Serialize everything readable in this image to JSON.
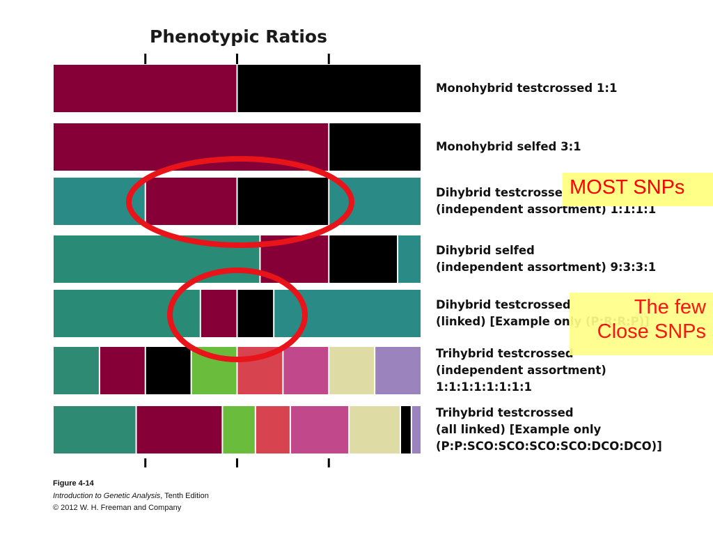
{
  "chart_data": {
    "type": "bar",
    "title": "Phenotypic Ratios",
    "rows": [
      {
        "label_lines": [
          "Monohybrid testcrossed 1:1"
        ],
        "segments": [
          {
            "value": 1,
            "color": "#860037"
          },
          {
            "value": 1,
            "color": "#000000"
          }
        ]
      },
      {
        "label_lines": [
          "Monohybrid selfed 3:1"
        ],
        "segments": [
          {
            "value": 3,
            "color": "#860037"
          },
          {
            "value": 1,
            "color": "#000000"
          }
        ]
      },
      {
        "label_lines": [
          "Dihybrid testcrossed",
          "(independent assortment) 1:1:1:1"
        ],
        "segments": [
          {
            "value": 1,
            "color": "#298a86"
          },
          {
            "value": 1,
            "color": "#860037"
          },
          {
            "value": 1,
            "color": "#000000"
          },
          {
            "value": 1,
            "color": "#298a86"
          }
        ]
      },
      {
        "label_lines": [
          "Dihybrid selfed",
          "(independent assortment) 9:3:3:1"
        ],
        "segments": [
          {
            "value": 9,
            "color": "#298a76"
          },
          {
            "value": 3,
            "color": "#860037"
          },
          {
            "value": 3,
            "color": "#000000"
          },
          {
            "value": 1,
            "color": "#298a86"
          }
        ]
      },
      {
        "label_lines": [
          "Dihybrid testcrossed",
          "(linked) [Example only (P:R:R:P)]"
        ],
        "segments": [
          {
            "value": 40,
            "color": "#298a76"
          },
          {
            "value": 10,
            "color": "#860037"
          },
          {
            "value": 10,
            "color": "#000000"
          },
          {
            "value": 40,
            "color": "#298a86"
          }
        ]
      },
      {
        "label_lines": [
          "Trihybrid testcrossed",
          "(independent assortment)",
          "1:1:1:1:1:1:1:1"
        ],
        "segments": [
          {
            "value": 1,
            "color": "#2e8a72"
          },
          {
            "value": 1,
            "color": "#860037"
          },
          {
            "value": 1,
            "color": "#000000"
          },
          {
            "value": 1,
            "color": "#6abc3c"
          },
          {
            "value": 1,
            "color": "#d7434f"
          },
          {
            "value": 1,
            "color": "#c2488c"
          },
          {
            "value": 1,
            "color": "#dedba4"
          },
          {
            "value": 1,
            "color": "#9b84bd"
          }
        ]
      },
      {
        "label_lines": [
          "Trihybrid testcrossed",
          "(all linked) [Example only",
          "(P:P:SCO:SCO:SCO:SCO:DCO:DCO)]"
        ],
        "segments": [
          {
            "value": 22.5,
            "color": "#2e8a72"
          },
          {
            "value": 23.5,
            "color": "#860037"
          },
          {
            "value": 9,
            "color": "#6abc3c"
          },
          {
            "value": 9.5,
            "color": "#d7434f"
          },
          {
            "value": 16,
            "color": "#c2488c"
          },
          {
            "value": 14,
            "color": "#dedba4"
          },
          {
            "value": 3,
            "color": "#000000"
          },
          {
            "value": 2.5,
            "color": "#9b84bd"
          }
        ]
      }
    ],
    "tick_fractions": [
      0.25,
      0.5,
      0.75
    ]
  },
  "annotations": {
    "most_snps": "MOST SNPs",
    "few_close_snps": [
      "The few",
      "Close SNPs"
    ],
    "ellipse_color": "#e8141a"
  },
  "caption": {
    "figure": "Figure 4-14",
    "book_title": "Introduction to Genetic Analysis",
    "edition": ", Tenth Edition",
    "copyright": "© 2012 W. H. Freeman and Company"
  }
}
